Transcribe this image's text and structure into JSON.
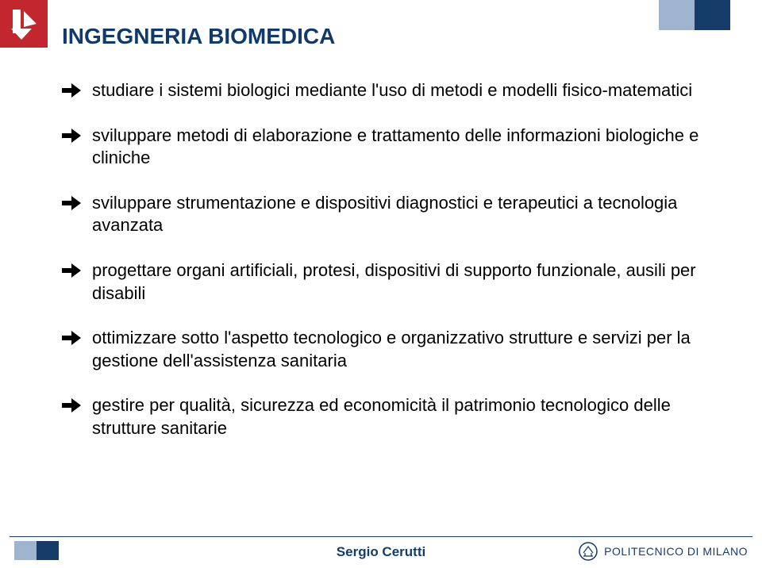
{
  "colors": {
    "brand_red": "#c1272d",
    "brand_navy": "#0f3a6b",
    "title_navy": "#0f3a6b",
    "bullet_arrow": "#000000",
    "body_text": "#000000",
    "footer_line": "#163d6a",
    "footer_author": "#163d6a",
    "poli_text": "#163d6a",
    "stripe_light": "#9fb4cf",
    "stripe_dark": "#163d6a"
  },
  "typography": {
    "title_fontsize": 28,
    "body_fontsize": 22,
    "footer_fontsize": 17,
    "poli_fontsize": 14
  },
  "title": "INGEGNERIA BIOMEDICA",
  "bullets": [
    "studiare i sistemi biologici mediante l'uso di metodi e modelli fisico-matematici",
    "sviluppare metodi di elaborazione e trattamento delle informazioni biologiche e cliniche",
    "sviluppare strumentazione e dispositivi diagnostici e terapeutici a tecnologia avanzata",
    "progettare organi artificiali, protesi, dispositivi di supporto funzionale, ausili per disabili",
    "ottimizzare sotto l'aspetto tecnologico e organizzativo strutture e servizi per la gestione dell'assistenza sanitaria",
    "gestire per qualità, sicurezza ed economicità il patrimonio tecnologico delle strutture sanitarie"
  ],
  "footer": {
    "author": "Sergio Cerutti",
    "institution": "POLITECNICO DI MILANO"
  }
}
